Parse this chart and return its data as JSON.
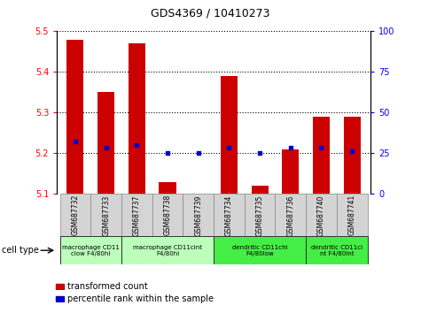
{
  "title": "GDS4369 / 10410273",
  "samples": [
    "GSM687732",
    "GSM687733",
    "GSM687737",
    "GSM687738",
    "GSM687739",
    "GSM687734",
    "GSM687735",
    "GSM687736",
    "GSM687740",
    "GSM687741"
  ],
  "transformed_counts": [
    5.48,
    5.35,
    5.47,
    5.13,
    5.1,
    5.39,
    5.12,
    5.21,
    5.29,
    5.29
  ],
  "percentile_values": [
    5.23,
    5.215,
    5.22,
    5.2,
    5.2,
    5.215,
    5.2,
    5.215,
    5.213,
    5.205
  ],
  "ylim_left": [
    5.1,
    5.5
  ],
  "ylim_right": [
    0,
    100
  ],
  "yticks_left": [
    5.1,
    5.2,
    5.3,
    5.4,
    5.5
  ],
  "yticks_right": [
    0,
    25,
    50,
    75,
    100
  ],
  "bar_color": "#cc0000",
  "dot_color": "#0000cc",
  "bar_bottom": 5.1,
  "cell_type_groups": [
    {
      "label": "macrophage CD11\nclow F4/80hi",
      "start": 0,
      "end": 2,
      "color": "#bbffbb"
    },
    {
      "label": "macrophage CD11cint\nF4/80hi",
      "start": 2,
      "end": 5,
      "color": "#bbffbb"
    },
    {
      "label": "dendritic CD11chi\nF4/80low",
      "start": 5,
      "end": 8,
      "color": "#44ee44"
    },
    {
      "label": "dendritic CD11ci\nnt F4/80int",
      "start": 8,
      "end": 10,
      "color": "#44ee44"
    }
  ],
  "cell_type_label": "cell type",
  "legend_red": "transformed count",
  "legend_blue": "percentile rank within the sample",
  "bar_color_legend": "#cc0000",
  "dot_color_legend": "#0000cc"
}
